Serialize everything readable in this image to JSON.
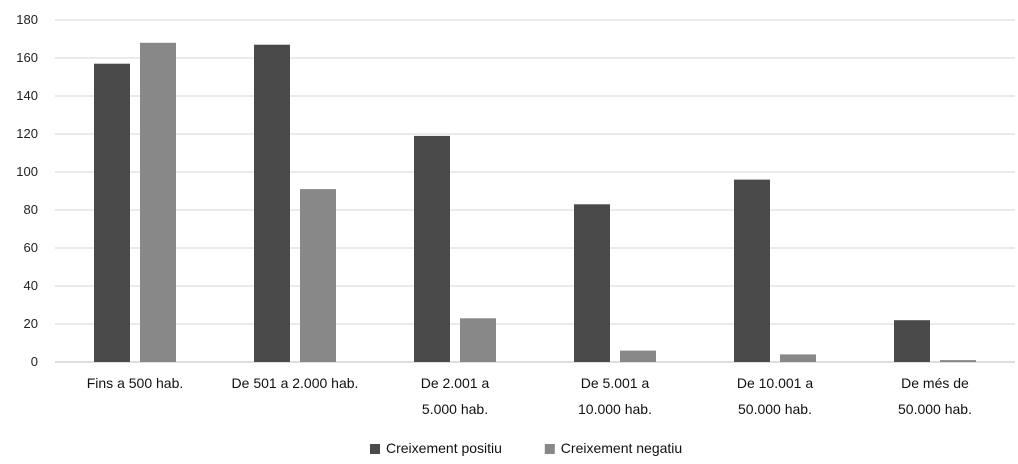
{
  "chart_data": {
    "type": "bar",
    "title": "",
    "xlabel": "",
    "ylabel": "",
    "ylim": [
      0,
      180
    ],
    "yticks": [
      0,
      20,
      40,
      60,
      80,
      100,
      120,
      140,
      160,
      180
    ],
    "grid": true,
    "legend_position": "bottom",
    "categories": [
      [
        "Fins a 500 hab."
      ],
      [
        "De 501 a 2.000 hab."
      ],
      [
        "De 2.001 a",
        "5.000 hab."
      ],
      [
        "De 5.001 a",
        "10.000 hab."
      ],
      [
        "De 10.001 a",
        "50.000 hab."
      ],
      [
        "De més de",
        "50.000 hab."
      ]
    ],
    "series": [
      {
        "name": "Creixement positiu",
        "color": "#4a4a4a",
        "values": [
          157,
          167,
          119,
          83,
          96,
          22
        ]
      },
      {
        "name": "Creixement negatiu",
        "color": "#888888",
        "values": [
          168,
          91,
          23,
          6,
          4,
          1
        ]
      }
    ]
  }
}
